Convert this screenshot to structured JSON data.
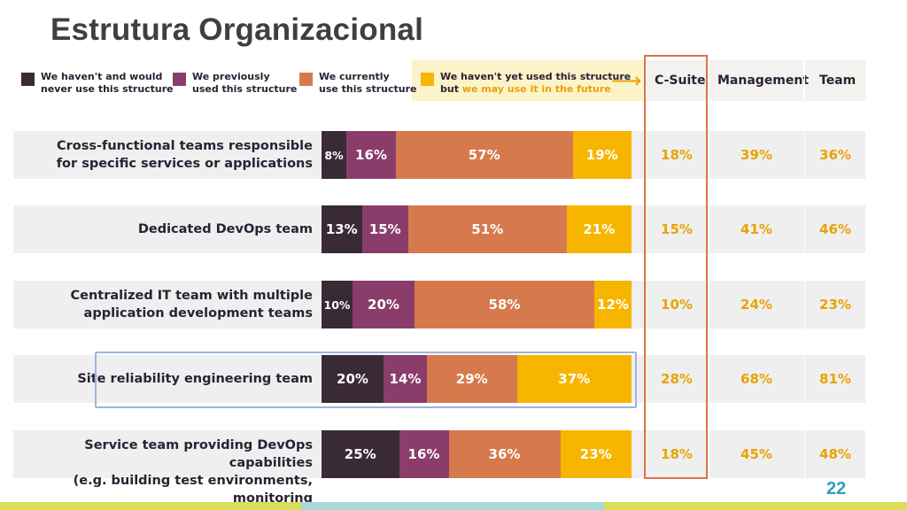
{
  "title": "Estrutura Organizacional",
  "page_number": "22",
  "legend": [
    {
      "line1": "We haven't and would",
      "line2": "never use this structure",
      "color": "#3a2a36"
    },
    {
      "line1": "We previously",
      "line2": "used this structure",
      "color": "#8a3d6a"
    },
    {
      "line1": "We currently",
      "line2": "use this structure",
      "color": "#d67a4e"
    },
    {
      "line1": "We haven't yet used this structure",
      "line2a": "but ",
      "line2b": "we may use it in the future",
      "color": "#f7b500"
    }
  ],
  "columns": [
    "C-Suite",
    "Management",
    "Team"
  ],
  "chart_data": {
    "type": "bar",
    "stacked": true,
    "orientation": "horizontal",
    "categories": [
      "Cross-functional teams responsible for specific services or applications",
      "Dedicated DevOps team",
      "Centralized IT team with multiple application development teams",
      "Site reliability engineering team",
      "Service team providing DevOps capabilities (e.g. building test environments, monitoring"
    ],
    "label_lines": [
      [
        "Cross-functional teams responsible",
        "for specific services or applications"
      ],
      [
        "Dedicated DevOps team"
      ],
      [
        "Centralized IT team with multiple",
        "application development teams"
      ],
      [
        "Site reliability engineering team"
      ],
      [
        "Service team providing DevOps capabilities",
        "(e.g. building test environments, monitoring"
      ]
    ],
    "series": [
      {
        "name": "We haven't and would never use this structure",
        "color": "#3a2a36",
        "values": [
          8,
          13,
          10,
          20,
          25
        ]
      },
      {
        "name": "We previously used this structure",
        "color": "#8a3d6a",
        "values": [
          16,
          15,
          20,
          14,
          16
        ]
      },
      {
        "name": "We currently use this structure",
        "color": "#d67a4e",
        "values": [
          57,
          51,
          58,
          29,
          36
        ]
      },
      {
        "name": "We haven't yet used this structure but we may use it in the future",
        "color": "#f7b500",
        "values": [
          19,
          21,
          12,
          37,
          23
        ]
      }
    ],
    "table": {
      "C-Suite": [
        "18%",
        "15%",
        "10%",
        "28%",
        "18%"
      ],
      "Management": [
        "39%",
        "41%",
        "24%",
        "68%",
        "45%"
      ],
      "Team": [
        "36%",
        "46%",
        "23%",
        "81%",
        "48%"
      ]
    },
    "highlighted_category": "Site reliability engineering team",
    "highlighted_column": "C-Suite"
  },
  "footer_colors": [
    "#d9de5a",
    "#a8d8d8",
    "#d9de5a"
  ]
}
